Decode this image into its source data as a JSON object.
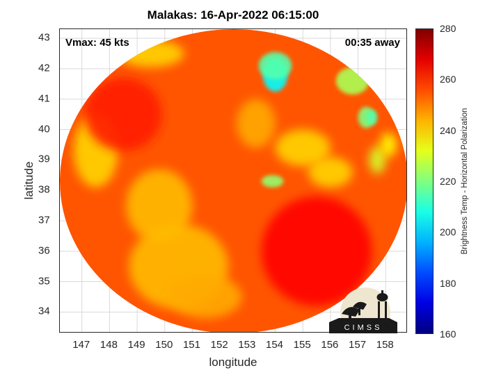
{
  "chart_data": {
    "type": "heatmap",
    "title": "Malakas: 16-Apr-2022 06:15:00",
    "xlabel": "longitude",
    "ylabel": "latitude",
    "xlim": [
      146.2,
      158.8
    ],
    "ylim": [
      33.3,
      43.3
    ],
    "xticks": [
      147,
      148,
      149,
      150,
      151,
      152,
      153,
      154,
      155,
      156,
      157,
      158
    ],
    "yticks": [
      34,
      35,
      36,
      37,
      38,
      39,
      40,
      41,
      42,
      43
    ],
    "grid": true,
    "annotations": {
      "vmax": "Vmax: 45 kts",
      "time_away": "00:35 away"
    },
    "colorbar": {
      "label": "Brightness Temp - Horizontal Polarization",
      "range": [
        160,
        280
      ],
      "ticks": [
        160,
        180,
        200,
        220,
        240,
        260,
        280
      ],
      "colormap": "jet"
    },
    "data_extent": {
      "center": [
        152.5,
        38.3
      ],
      "radius_lon": 6.3,
      "radius_lat": 5.0
    },
    "features": [
      {
        "lon": 154.0,
        "lat": 41.8,
        "value": 205,
        "rx": 0.45,
        "ry": 0.55
      },
      {
        "lon": 154.0,
        "lat": 42.1,
        "value": 215,
        "rx": 0.6,
        "ry": 0.45
      },
      {
        "lon": 156.8,
        "lat": 41.6,
        "value": 225,
        "rx": 0.6,
        "ry": 0.45
      },
      {
        "lon": 157.3,
        "lat": 40.4,
        "value": 220,
        "rx": 0.3,
        "ry": 0.35
      },
      {
        "lon": 157.5,
        "lat": 40.4,
        "value": 215,
        "rx": 0.2,
        "ry": 0.25
      },
      {
        "lon": 157.7,
        "lat": 39.0,
        "value": 230,
        "rx": 0.3,
        "ry": 0.45
      },
      {
        "lon": 158.1,
        "lat": 39.5,
        "value": 235,
        "rx": 0.3,
        "ry": 0.4
      },
      {
        "lon": 153.9,
        "lat": 38.3,
        "value": 222,
        "rx": 0.4,
        "ry": 0.2
      },
      {
        "lon": 155.0,
        "lat": 39.4,
        "value": 240,
        "rx": 1.0,
        "ry": 0.6
      },
      {
        "lon": 156.0,
        "lat": 38.6,
        "value": 240,
        "rx": 0.8,
        "ry": 0.5
      },
      {
        "lon": 149.5,
        "lat": 42.5,
        "value": 240,
        "rx": 1.2,
        "ry": 0.45
      },
      {
        "lon": 147.5,
        "lat": 39.3,
        "value": 240,
        "rx": 0.8,
        "ry": 1.2
      },
      {
        "lon": 150.5,
        "lat": 35.5,
        "value": 243,
        "rx": 1.8,
        "ry": 1.4
      },
      {
        "lon": 149.8,
        "lat": 37.5,
        "value": 243,
        "rx": 1.2,
        "ry": 1.2
      },
      {
        "lon": 151.5,
        "lat": 34.5,
        "value": 245,
        "rx": 1.3,
        "ry": 0.7
      },
      {
        "lon": 153.3,
        "lat": 40.2,
        "value": 245,
        "rx": 0.7,
        "ry": 0.8
      },
      {
        "lon": 148.5,
        "lat": 40.5,
        "value": 262,
        "rx": 1.4,
        "ry": 1.2
      },
      {
        "lon": 155.5,
        "lat": 36.0,
        "value": 265,
        "rx": 2.0,
        "ry": 1.8
      }
    ],
    "logo": "CIMSS"
  },
  "colors": {
    "background": "#ffffff",
    "grid": "#d9d9d9",
    "axis": "#262626"
  },
  "icons": {
    "logo": "cimss-logo-icon"
  }
}
